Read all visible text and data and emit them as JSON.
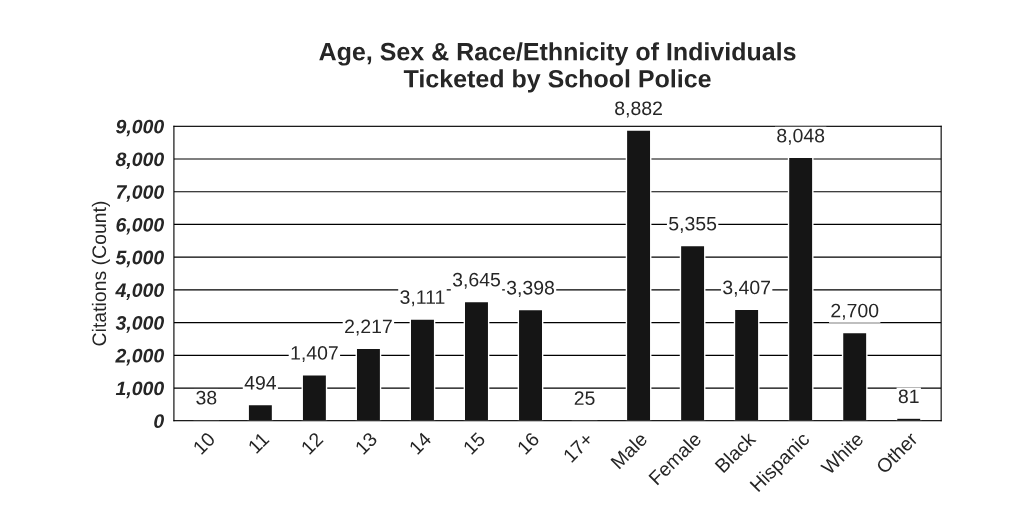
{
  "chart_data": {
    "type": "bar",
    "title": "Age, Sex & Race/Ethnicity of Individuals\nTicketed by School Police",
    "ylabel": "Citations (Count)",
    "categories": [
      "10",
      "11",
      "12",
      "13",
      "14",
      "15",
      "16",
      "17+",
      "Male",
      "Female",
      "Black",
      "Hispanic",
      "White",
      "Other"
    ],
    "values": [
      38,
      494,
      1407,
      2217,
      3111,
      3645,
      3398,
      25,
      8882,
      5355,
      3407,
      8048,
      2700,
      81
    ],
    "value_labels": [
      "38",
      "494",
      "1,407",
      "2,217",
      "3,111",
      "3,645",
      "3,398",
      "25",
      "8,882",
      "5,355",
      "3,407",
      "8,048",
      "2,700",
      "81"
    ],
    "color": "#151515",
    "ylim": [
      0,
      9000
    ],
    "yticks": [
      0,
      {
        "value": 1000,
        "label": "1,000"
      },
      {
        "value": 2000,
        "label": "2,000"
      },
      {
        "value": 3000,
        "label": "3,000"
      },
      {
        "value": 4000,
        "label": "4,000"
      },
      {
        "value": 5000,
        "label": "5,000"
      },
      {
        "value": 6000,
        "label": "6,000"
      },
      {
        "value": 7000,
        "label": "7,000"
      },
      {
        "value": 8000,
        "label": "8,000"
      },
      {
        "value": 9000,
        "label": "9,000"
      }
    ],
    "grid": "y",
    "legend": false
  }
}
